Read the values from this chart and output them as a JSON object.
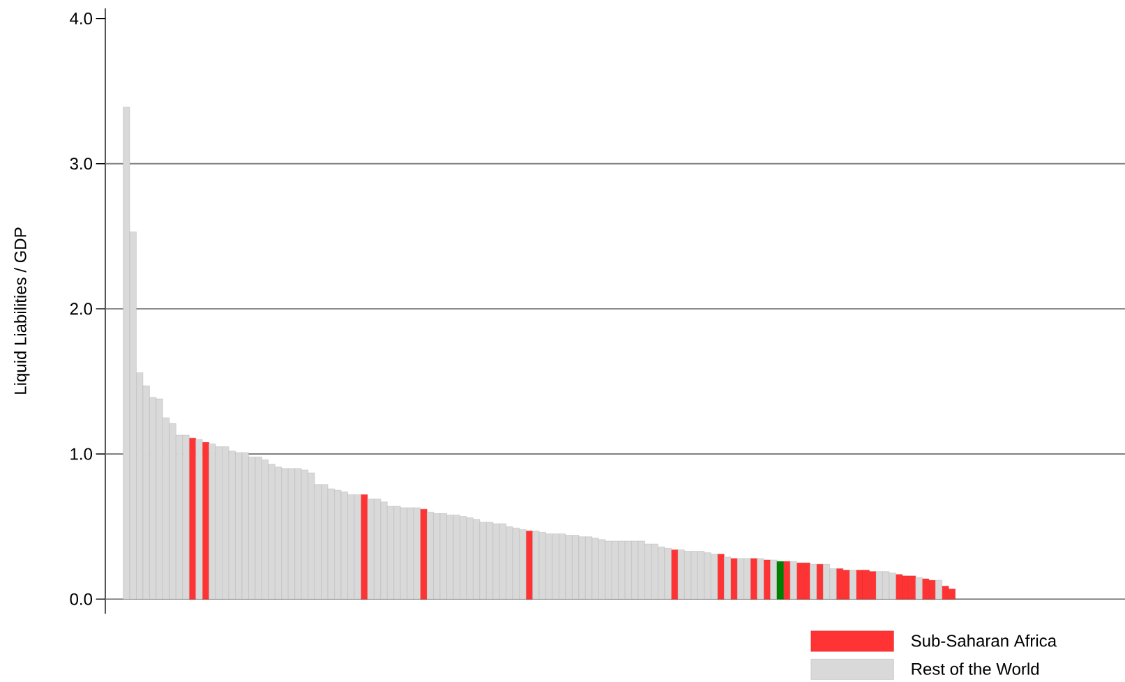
{
  "chart_data": {
    "type": "bar",
    "ylabel": "Liquid Liabilities / GDP",
    "categories": [
      null,
      null,
      null,
      null,
      null,
      null,
      null,
      null,
      null,
      null,
      null,
      null,
      null,
      null,
      null,
      null,
      null,
      null,
      null,
      null,
      null,
      null,
      null,
      null,
      null,
      null,
      null,
      null,
      null,
      null,
      null,
      null,
      null,
      null,
      null,
      null,
      null,
      null,
      null,
      null,
      null,
      null,
      null,
      null,
      null,
      null,
      null,
      null,
      null,
      null,
      null,
      null,
      null,
      null,
      null,
      null,
      null,
      null,
      null,
      null,
      null,
      null,
      null,
      null,
      null,
      null,
      null,
      null,
      null,
      null,
      null,
      null,
      null,
      null,
      null,
      null,
      null,
      null,
      null,
      null,
      null,
      null,
      null,
      null,
      null,
      null,
      null,
      null,
      null,
      null,
      null,
      null,
      null,
      null,
      null,
      null,
      null,
      null,
      null,
      null,
      null,
      null,
      null,
      null,
      null,
      null,
      null,
      null,
      null,
      null,
      null,
      null,
      null,
      null,
      null,
      null,
      null,
      null,
      null,
      null,
      null,
      null,
      null,
      null,
      null,
      null
    ],
    "series": [
      {
        "name": "Sub-Saharan Africa",
        "color": "#ff3333",
        "values": [
          null,
          null,
          null,
          null,
          null,
          null,
          null,
          null,
          null,
          null,
          1.11,
          null,
          1.08,
          null,
          null,
          null,
          null,
          null,
          null,
          null,
          null,
          null,
          null,
          null,
          null,
          null,
          null,
          null,
          null,
          null,
          null,
          null,
          null,
          null,
          null,
          null,
          0.72,
          null,
          null,
          null,
          null,
          null,
          null,
          null,
          null,
          0.62,
          null,
          null,
          null,
          null,
          null,
          null,
          null,
          null,
          null,
          null,
          null,
          null,
          null,
          null,
          null,
          0.47,
          null,
          null,
          null,
          null,
          null,
          null,
          null,
          null,
          null,
          null,
          null,
          null,
          null,
          null,
          null,
          null,
          null,
          null,
          null,
          null,
          null,
          0.34,
          null,
          null,
          null,
          null,
          null,
          null,
          0.31,
          null,
          0.28,
          null,
          null,
          0.28,
          null,
          0.27,
          null,
          null,
          0.26,
          null,
          0.25,
          0.25,
          null,
          0.24,
          null,
          null,
          0.21,
          0.2,
          null,
          0.2,
          0.2,
          0.19,
          null,
          null,
          null,
          0.17,
          0.16,
          0.16,
          null,
          0.14,
          0.13,
          null,
          0.09,
          0.07
        ]
      },
      {
        "name": "Rest of the World",
        "color": "#d9d9d9",
        "values": [
          3.39,
          2.53,
          1.56,
          1.47,
          1.39,
          1.38,
          1.25,
          1.21,
          1.13,
          1.13,
          null,
          1.1,
          null,
          1.07,
          1.05,
          1.05,
          1.02,
          1.01,
          1.01,
          0.98,
          0.98,
          0.96,
          0.93,
          0.91,
          0.9,
          0.9,
          0.9,
          0.89,
          0.87,
          0.79,
          0.79,
          0.76,
          0.75,
          0.74,
          0.72,
          0.72,
          null,
          0.69,
          0.69,
          0.67,
          0.64,
          0.64,
          0.63,
          0.63,
          0.63,
          null,
          0.6,
          0.59,
          0.59,
          0.58,
          0.58,
          0.57,
          0.56,
          0.55,
          0.53,
          0.53,
          0.52,
          0.52,
          0.5,
          0.49,
          0.48,
          null,
          0.47,
          0.46,
          0.45,
          0.45,
          0.45,
          0.44,
          0.44,
          0.43,
          0.43,
          0.42,
          0.41,
          0.4,
          0.4,
          0.4,
          0.4,
          0.4,
          0.4,
          0.38,
          0.38,
          0.36,
          0.35,
          null,
          0.34,
          0.33,
          0.33,
          0.33,
          0.32,
          0.31,
          null,
          0.29,
          null,
          0.28,
          0.28,
          null,
          0.28,
          null,
          0.27,
          null,
          null,
          0.26,
          null,
          null,
          0.24,
          null,
          0.24,
          0.21,
          null,
          null,
          0.2,
          null,
          null,
          null,
          0.19,
          0.19,
          0.18,
          null,
          null,
          null,
          0.15,
          null,
          null,
          0.13,
          null,
          null
        ]
      },
      {
        "color": "#008000",
        "values": [
          null,
          null,
          null,
          null,
          null,
          null,
          null,
          null,
          null,
          null,
          null,
          null,
          null,
          null,
          null,
          null,
          null,
          null,
          null,
          null,
          null,
          null,
          null,
          null,
          null,
          null,
          null,
          null,
          null,
          null,
          null,
          null,
          null,
          null,
          null,
          null,
          null,
          null,
          null,
          null,
          null,
          null,
          null,
          null,
          null,
          null,
          null,
          null,
          null,
          null,
          null,
          null,
          null,
          null,
          null,
          null,
          null,
          null,
          null,
          null,
          null,
          null,
          null,
          null,
          null,
          null,
          null,
          null,
          null,
          null,
          null,
          null,
          null,
          null,
          null,
          null,
          null,
          null,
          null,
          null,
          null,
          null,
          null,
          null,
          null,
          null,
          null,
          null,
          null,
          null,
          null,
          null,
          null,
          null,
          null,
          null,
          null,
          null,
          null,
          0.26,
          null,
          null,
          null,
          null,
          null,
          null,
          null,
          null,
          null,
          null,
          null,
          null,
          null,
          null,
          null,
          null,
          null,
          null,
          null,
          null,
          null,
          null,
          null,
          null,
          null,
          null
        ]
      }
    ],
    "ylim": [
      -0.1,
      4.07
    ],
    "yticks": [
      {
        "value": 0,
        "label": "0.0"
      },
      {
        "value": 1,
        "label": "1.0"
      },
      {
        "value": 2,
        "label": "2.0"
      },
      {
        "value": 3,
        "label": "3.0"
      },
      {
        "value": 4,
        "label": "4.0"
      }
    ],
    "ref_lines": [
      {
        "axis": "y",
        "value": 0,
        "color": "#808080"
      },
      {
        "axis": "y",
        "value": 1,
        "color": "#808080"
      },
      {
        "axis": "y",
        "value": 2,
        "color": "#808080"
      },
      {
        "axis": "y",
        "value": 3,
        "color": "#808080"
      }
    ],
    "stacked": true,
    "legend": "bottom right"
  }
}
